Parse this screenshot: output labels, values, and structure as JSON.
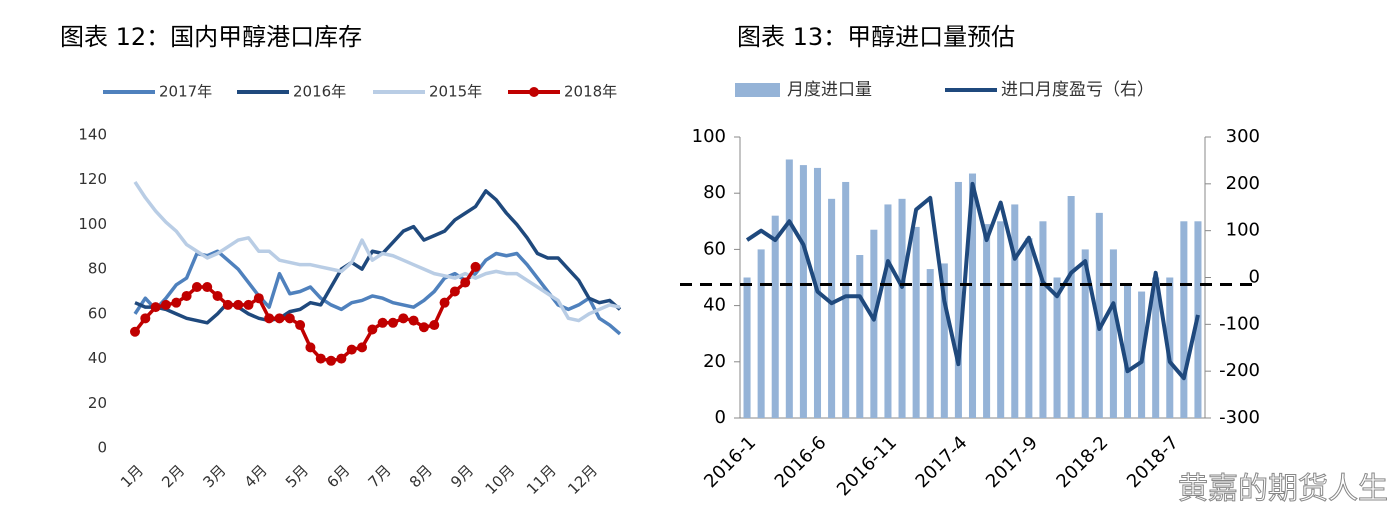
{
  "chart_data": [
    {
      "type": "line",
      "title": "图表 12：国内甲醇港口库存",
      "categories": [
        "1月",
        null,
        null,
        null,
        "2月",
        null,
        null,
        null,
        "3月",
        null,
        null,
        null,
        "4月",
        null,
        null,
        null,
        "5月",
        null,
        null,
        null,
        "6月",
        null,
        null,
        null,
        "7月",
        null,
        null,
        null,
        "8月",
        null,
        null,
        null,
        "9月",
        null,
        null,
        null,
        "10月",
        null,
        null,
        null,
        "11月",
        null,
        null,
        null,
        "12月",
        null,
        null,
        null
      ],
      "ylim": [
        0,
        140
      ],
      "yticks": [
        0,
        20,
        40,
        60,
        80,
        100,
        120,
        140
      ],
      "grid": false,
      "legend": "top",
      "series": [
        {
          "name": "2017年",
          "color": "#4f81bd",
          "values": [
            60,
            67,
            62,
            67,
            73,
            76,
            87,
            86,
            88,
            84,
            80,
            74,
            68,
            63,
            78,
            69,
            70,
            72,
            67,
            64,
            62,
            65,
            66,
            68,
            67,
            65,
            64,
            63,
            66,
            70,
            76,
            78,
            75,
            78,
            84,
            87,
            86,
            87,
            82,
            76,
            70,
            64,
            62,
            64,
            67,
            58,
            55,
            51
          ]
        },
        {
          "name": "2016年",
          "color": "#1f497d",
          "values": [
            65,
            63,
            63,
            62,
            60,
            58,
            57,
            56,
            60,
            65,
            63,
            60,
            58,
            57,
            58,
            61,
            62,
            65,
            64,
            72,
            80,
            83,
            80,
            88,
            87,
            92,
            97,
            99,
            93,
            95,
            97,
            102,
            105,
            108,
            115,
            111,
            105,
            100,
            94,
            87,
            85,
            85,
            80,
            75,
            67,
            65,
            66,
            62
          ]
        },
        {
          "name": "2015年",
          "color": "#b9cde5",
          "values": [
            119,
            112,
            106,
            101,
            97,
            91,
            88,
            85,
            87,
            90,
            93,
            94,
            88,
            88,
            84,
            83,
            82,
            82,
            81,
            80,
            79,
            83,
            93,
            84,
            87,
            86,
            84,
            82,
            80,
            78,
            77,
            76,
            78,
            76,
            78,
            79,
            78,
            78,
            75,
            72,
            69,
            66,
            58,
            57,
            60,
            62,
            64,
            63
          ]
        },
        {
          "name": "2018年",
          "color": "#c00000",
          "markers": true,
          "values": [
            52,
            58,
            63,
            64,
            65,
            68,
            72,
            72,
            68,
            64,
            64,
            64,
            67,
            58,
            58,
            58,
            55,
            45,
            40,
            39,
            40,
            44,
            45,
            53,
            56,
            56,
            58,
            57,
            54,
            55,
            65,
            70,
            74,
            81,
            null,
            null,
            null,
            null,
            null,
            null,
            null,
            null,
            null,
            null,
            null,
            null,
            null,
            null
          ]
        }
      ]
    },
    {
      "type": "bar_line",
      "title": "图表 13：甲醇进口量预估",
      "categories": [
        "2016-1",
        null,
        null,
        null,
        null,
        "2016-6",
        null,
        null,
        null,
        null,
        "2016-11",
        null,
        null,
        null,
        null,
        "2017-4",
        null,
        null,
        null,
        null,
        "2017-9",
        null,
        null,
        null,
        null,
        "2018-2",
        null,
        null,
        null,
        null,
        "2018-7",
        null,
        null
      ],
      "ylim": [
        0,
        100
      ],
      "yticks": [
        0,
        20,
        40,
        60,
        80,
        100
      ],
      "y2lim": [
        -300,
        300
      ],
      "y2ticks": [
        -300,
        -200,
        -100,
        0,
        100,
        200,
        300
      ],
      "y2_reference": -15,
      "legend": "top",
      "series": [
        {
          "name": "月度进口量",
          "kind": "bar",
          "color": "#95b3d7",
          "values": [
            50,
            60,
            72,
            92,
            90,
            89,
            78,
            84,
            58,
            67,
            76,
            78,
            68,
            53,
            55,
            84,
            87,
            69,
            70,
            76,
            64,
            70,
            50,
            79,
            60,
            73,
            60,
            48,
            45,
            50,
            50,
            70,
            70
          ]
        },
        {
          "name": "进口月度盈亏（右）",
          "kind": "line",
          "axis": "y2",
          "color": "#1f497d",
          "values": [
            80,
            100,
            80,
            120,
            70,
            -30,
            -55,
            -40,
            -40,
            -90,
            35,
            -20,
            145,
            170,
            -50,
            -185,
            200,
            80,
            160,
            40,
            85,
            -10,
            -40,
            10,
            35,
            -110,
            -55,
            -200,
            -180,
            10,
            -180,
            -215,
            -80
          ]
        }
      ]
    }
  ],
  "watermark": "黄嘉的期货人生"
}
